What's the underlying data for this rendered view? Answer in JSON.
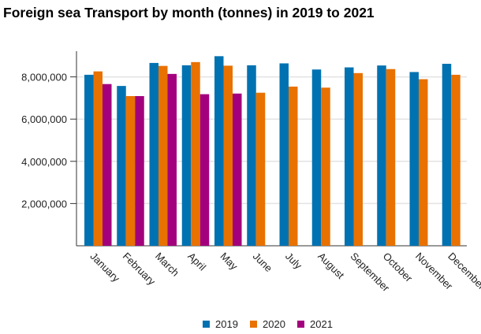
{
  "chart_data": {
    "type": "bar",
    "title": "Foreign sea Transport by month (tonnes) in 2019 to 2021",
    "xlabel": "",
    "ylabel": "",
    "ylim": [
      0,
      9200000
    ],
    "yticks": [
      2000000,
      4000000,
      6000000,
      8000000
    ],
    "ytick_labels": [
      "2,000,000",
      "4,000,000",
      "6,000,000",
      "8,000,000"
    ],
    "grid": true,
    "legend": "bottom",
    "categories": [
      "January",
      "February",
      "March",
      "April",
      "May",
      "June",
      "July",
      "August",
      "September",
      "October",
      "November",
      "December"
    ],
    "series": [
      {
        "name": "2019",
        "color": "#0072b2",
        "values": [
          8100000,
          7570000,
          8660000,
          8550000,
          8980000,
          8550000,
          8640000,
          8350000,
          8450000,
          8540000,
          8230000,
          8620000
        ]
      },
      {
        "name": "2020",
        "color": "#e87100",
        "values": [
          8260000,
          7090000,
          8520000,
          8700000,
          8530000,
          7250000,
          7540000,
          7490000,
          8180000,
          8370000,
          7890000,
          8100000
        ]
      },
      {
        "name": "2021",
        "color": "#a3007d",
        "values": [
          7660000,
          7090000,
          8140000,
          7180000,
          7210000,
          null,
          null,
          null,
          null,
          null,
          null,
          null
        ]
      }
    ]
  }
}
